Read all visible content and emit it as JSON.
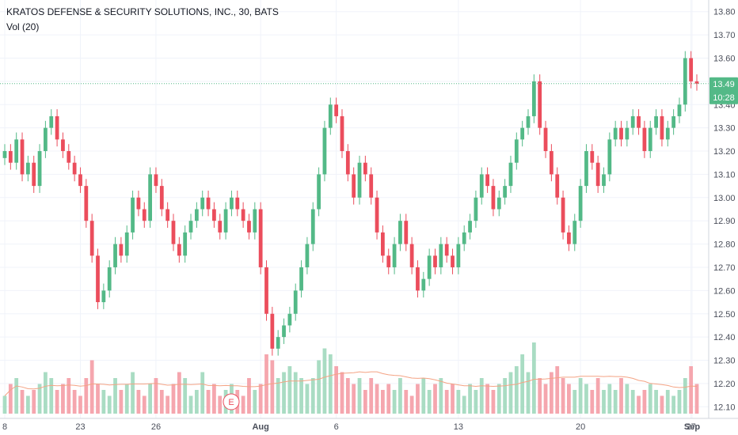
{
  "header": {
    "title": "KRATOS DEFENSE & SECURITY SOLUTIONS, INC., 30, BATS",
    "volume_label": "Vol (20)"
  },
  "colors": {
    "up": "#53b987",
    "down": "#eb4d5c",
    "up_volume": "#a9dcc3",
    "down_volume": "#f5a6ae",
    "volume_ma": "#f4a384",
    "grid": "#f0f3fa",
    "price_line": "#53b987"
  },
  "price_badge": {
    "price": "13.49",
    "countdown": "10:28"
  },
  "event_marker": {
    "label": "E"
  },
  "chart_data": {
    "type": "candlestick",
    "ylim": [
      12.05,
      13.85
    ],
    "y_ticks": [
      "12.10",
      "12.20",
      "12.30",
      "12.40",
      "12.50",
      "12.60",
      "12.70",
      "12.80",
      "12.90",
      "13.00",
      "13.10",
      "13.20",
      "13.30",
      "13.40",
      "13.50",
      "13.60",
      "13.70",
      "13.80"
    ],
    "x_ticks": [
      "8",
      "23",
      "26",
      "Aug",
      "6",
      "13",
      "20",
      "27",
      "Sep"
    ],
    "grid": true,
    "last_price": 13.49,
    "series": [
      {
        "name": "Price",
        "values": [
          13.2,
          13.15,
          13.25,
          13.1,
          13.15,
          13.05,
          13.2,
          13.3,
          13.35,
          13.25,
          13.2,
          13.15,
          13.1,
          13.05,
          12.9,
          12.75,
          12.55,
          12.6,
          12.7,
          12.8,
          12.75,
          12.85,
          13.0,
          12.95,
          12.9,
          13.1,
          13.05,
          12.95,
          12.9,
          12.8,
          12.75,
          12.85,
          12.9,
          12.95,
          13.0,
          12.95,
          12.9,
          12.85,
          12.95,
          13.0,
          12.95,
          12.9,
          12.85,
          12.95,
          12.7,
          12.5,
          12.35,
          12.4,
          12.45,
          12.5,
          12.6,
          12.7,
          12.8,
          12.95,
          13.1,
          13.3,
          13.4,
          13.35,
          13.2,
          13.1,
          13.0,
          13.15,
          13.1,
          13.0,
          12.85,
          12.75,
          12.7,
          12.8,
          12.9,
          12.8,
          12.7,
          12.6,
          12.65,
          12.75,
          12.7,
          12.8,
          12.75,
          12.7,
          12.8,
          12.85,
          12.9,
          13.0,
          13.1,
          13.05,
          12.95,
          13.0,
          13.05,
          13.15,
          13.25,
          13.3,
          13.35,
          13.5,
          13.3,
          13.2,
          13.1,
          13.0,
          12.85,
          12.8,
          12.9,
          13.05,
          13.2,
          13.15,
          13.05,
          13.1,
          13.25,
          13.3,
          13.25,
          13.3,
          13.35,
          13.3,
          13.2,
          13.3,
          13.35,
          13.25,
          13.3,
          13.35,
          13.4,
          13.6,
          13.5,
          13.49
        ]
      },
      {
        "name": "Volume",
        "values": [
          0.15,
          0.25,
          0.3,
          0.2,
          0.15,
          0.2,
          0.25,
          0.35,
          0.3,
          0.2,
          0.25,
          0.3,
          0.2,
          0.15,
          0.3,
          0.45,
          0.25,
          0.2,
          0.15,
          0.3,
          0.2,
          0.25,
          0.35,
          0.2,
          0.15,
          0.25,
          0.3,
          0.2,
          0.15,
          0.25,
          0.35,
          0.3,
          0.15,
          0.2,
          0.35,
          0.2,
          0.25,
          0.15,
          0.2,
          0.25,
          0.2,
          0.15,
          0.3,
          0.2,
          0.25,
          0.5,
          0.45,
          0.3,
          0.35,
          0.4,
          0.35,
          0.3,
          0.25,
          0.3,
          0.45,
          0.55,
          0.5,
          0.4,
          0.35,
          0.3,
          0.25,
          0.3,
          0.2,
          0.3,
          0.25,
          0.2,
          0.25,
          0.2,
          0.3,
          0.2,
          0.15,
          0.25,
          0.3,
          0.2,
          0.25,
          0.3,
          0.2,
          0.25,
          0.2,
          0.15,
          0.25,
          0.2,
          0.3,
          0.25,
          0.2,
          0.25,
          0.3,
          0.35,
          0.4,
          0.5,
          0.35,
          0.6,
          0.3,
          0.25,
          0.35,
          0.4,
          0.3,
          0.25,
          0.2,
          0.3,
          0.25,
          0.2,
          0.3,
          0.2,
          0.25,
          0.2,
          0.3,
          0.25,
          0.2,
          0.15,
          0.2,
          0.25,
          0.2,
          0.15,
          0.2,
          0.15,
          0.2,
          0.3,
          0.4,
          0.25
        ]
      }
    ]
  }
}
